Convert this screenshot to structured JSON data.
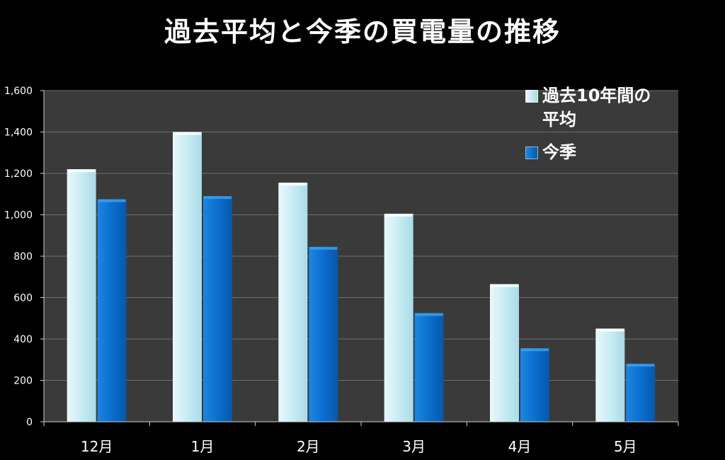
{
  "title": "過去平均と今季の買電量の推移",
  "colors": {
    "background": "#000000",
    "plot_area": "#3a3a3a",
    "gridline": "#6e6e6e",
    "series_past": "#c8ecf4",
    "series_current": "#0a6ecf"
  },
  "chart_data": {
    "type": "bar",
    "title": "過去平均と今季の買電量の推移",
    "categories": [
      "12月",
      "1月",
      "2月",
      "3月",
      "4月",
      "5月"
    ],
    "series": [
      {
        "name": "過去10年間の平均",
        "values": [
          1220,
          1400,
          1155,
          1005,
          665,
          450
        ]
      },
      {
        "name": "今季",
        "values": [
          1075,
          1090,
          845,
          525,
          355,
          280
        ]
      }
    ],
    "ylim": [
      0,
      1600
    ],
    "yticks": [
      0,
      200,
      400,
      600,
      800,
      1000,
      1200,
      1400,
      1600
    ],
    "ytick_labels": [
      "0",
      "200",
      "400",
      "600",
      "800",
      "1,000",
      "1,200",
      "1,400",
      "1,600"
    ],
    "grid": true,
    "legend_position": "top-right"
  },
  "legend": {
    "items": [
      {
        "label": "過去10年間の平均"
      },
      {
        "label": "今季"
      }
    ]
  }
}
